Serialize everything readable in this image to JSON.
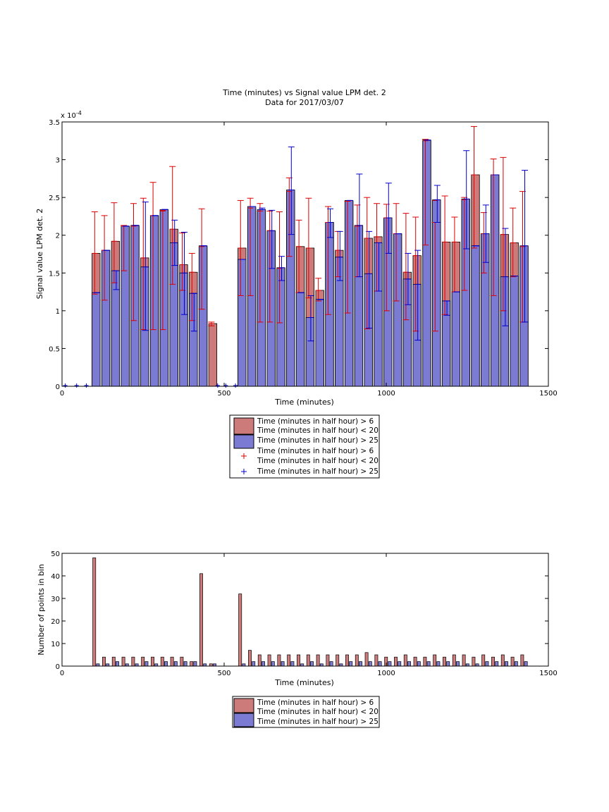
{
  "chart_data": [
    {
      "type": "bar",
      "title": "Time (minutes) vs Signal value LPM det. 2",
      "subtitle": "Data for 2017/03/07",
      "xlabel": "Time (minutes)",
      "ylabel": "Signal value LPM det. 2",
      "exponent_label": "x 10",
      "exponent_power": "-4",
      "xlim": [
        0,
        1500
      ],
      "ylim": [
        0,
        3.5
      ],
      "xticks": [
        "0",
        "500",
        "1000",
        "1500"
      ],
      "yticks": [
        "0",
        "0.5",
        "1",
        "1.5",
        "2",
        "2.5",
        "3",
        "3.5"
      ],
      "grid": false,
      "legend_position": "below",
      "legend": [
        "Time (minutes in half hour) > 6",
        "Time (minutes in half hour) < 20",
        "Time (minutes in half hour) > 25",
        "Time (minutes in half hour) > 6",
        "Time (minutes in half hour) < 20",
        "Time (minutes in half hour) > 25"
      ],
      "colors": {
        "red_bar": "#cc7a7a",
        "blue_bar": "#7b7bd4",
        "red_err": "#dd0000",
        "blue_err": "#0000cc"
      },
      "x": [
        105,
        135,
        165,
        195,
        225,
        255,
        285,
        315,
        345,
        375,
        405,
        435,
        465,
        555,
        585,
        615,
        645,
        675,
        705,
        735,
        765,
        795,
        825,
        855,
        885,
        915,
        945,
        975,
        1005,
        1035,
        1065,
        1095,
        1125,
        1155,
        1185,
        1215,
        1245,
        1275,
        1305,
        1335,
        1365,
        1395,
        1425
      ],
      "series": [
        {
          "name": "Time (minutes in half hour) > 6",
          "values": [
            1.76,
            1.8,
            1.92,
            2.12,
            2.12,
            1.7,
            2.26,
            2.32,
            2.08,
            1.61,
            1.51,
            1.85,
            0.83,
            1.83,
            2.36,
            2.32,
            2.06,
            1.56,
            2.58,
            1.85,
            1.83,
            1.27,
            2.17,
            1.8,
            2.45,
            2.12,
            1.96,
            1.98,
            2.23,
            2.02,
            1.51,
            1.73,
            3.25,
            2.46,
            1.91,
            1.91,
            2.47,
            2.8,
            2.02,
            2.8,
            2.01,
            1.9,
            1.85
          ],
          "err_low": [
            1.22,
            1.14,
            1.37,
            1.53,
            0.87,
            0.75,
            0.75,
            0.75,
            1.35,
            1.27,
            0.87,
            1.02,
            0.8,
            1.2,
            1.2,
            0.85,
            0.85,
            0.84,
            1.72,
            1.24,
            1.17,
            1.13,
            0.95,
            1.45,
            0.97,
            1.45,
            0.76,
            1.26,
            1.0,
            1.13,
            0.88,
            0.73,
            1.87,
            0.73,
            0.95,
            1.25,
            1.27,
            1.83,
            1.5,
            1.2,
            1.0,
            1.45,
            0.85
          ],
          "err_high": [
            2.31,
            2.26,
            2.43,
            2.13,
            2.42,
            2.49,
            2.7,
            2.33,
            2.91,
            2.03,
            1.76,
            2.35,
            0.85,
            2.46,
            2.49,
            2.42,
            2.32,
            2.31,
            2.76,
            2.2,
            2.49,
            1.43,
            2.38,
            2.05,
            2.45,
            2.4,
            2.5,
            2.42,
            2.41,
            2.42,
            2.29,
            2.24,
            3.27,
            2.17,
            2.52,
            2.24,
            2.5,
            3.44,
            2.3,
            3.01,
            3.03,
            2.36,
            2.58
          ]
        },
        {
          "name": "Time (minutes in half hour) > 25",
          "values": [
            1.24,
            1.8,
            1.53,
            2.12,
            2.13,
            1.58,
            2.26,
            2.34,
            1.9,
            1.5,
            1.23,
            1.86,
            0,
            1.68,
            2.38,
            2.34,
            2.06,
            1.57,
            2.6,
            1.24,
            0.91,
            1.15,
            2.17,
            1.71,
            2.46,
            2.13,
            1.49,
            1.9,
            2.23,
            2.02,
            1.42,
            1.35,
            3.26,
            2.47,
            1.13,
            1.25,
            2.48,
            1.86,
            2.02,
            2.8,
            1.45,
            1.46,
            1.86
          ],
          "err_low": [
            1.24,
            1.8,
            1.28,
            2.12,
            2.13,
            0.74,
            2.26,
            2.34,
            1.6,
            0.95,
            0.73,
            1.86,
            0,
            1.68,
            2.38,
            2.34,
            1.56,
            1.4,
            2.01,
            1.24,
            0.6,
            1.15,
            1.97,
            1.4,
            2.46,
            1.45,
            0.77,
            1.26,
            1.76,
            2.02,
            1.08,
            0.61,
            3.26,
            2.17,
            0.94,
            1.25,
            1.82,
            1.86,
            1.64,
            2.8,
            0.8,
            1.46,
            0.85
          ],
          "err_high": [
            1.24,
            1.8,
            1.53,
            2.12,
            2.13,
            2.44,
            2.26,
            2.34,
            2.2,
            2.04,
            1.23,
            1.86,
            0,
            1.68,
            2.38,
            2.36,
            2.33,
            1.72,
            3.17,
            1.24,
            1.2,
            1.15,
            2.35,
            2.05,
            2.46,
            2.81,
            2.05,
            1.9,
            2.69,
            2.02,
            1.76,
            1.8,
            3.26,
            2.66,
            1.13,
            1.25,
            3.12,
            1.86,
            2.4,
            2.8,
            2.09,
            1.46,
            2.86
          ]
        }
      ],
      "zero_markers_x": [
        10,
        45,
        75,
        480,
        505,
        535
      ]
    },
    {
      "type": "bar",
      "title": "",
      "xlabel": "Time (minutes)",
      "ylabel": "Number of points in bin",
      "xlim": [
        0,
        1500
      ],
      "ylim": [
        0,
        50
      ],
      "xticks": [
        "0",
        "500",
        "1000",
        "1500"
      ],
      "yticks": [
        "0",
        "10",
        "20",
        "30",
        "40",
        "50"
      ],
      "grid": false,
      "legend_position": "below",
      "legend": [
        "Time (minutes in half hour) > 6",
        "Time (minutes in half hour) < 20",
        "Time (minutes in half hour) > 25"
      ],
      "colors": {
        "red_bar": "#cc7a7a",
        "blue_bar": "#7b7bd4"
      },
      "x": [
        105,
        135,
        165,
        195,
        225,
        255,
        285,
        315,
        345,
        375,
        405,
        435,
        465,
        555,
        585,
        615,
        645,
        675,
        705,
        735,
        765,
        795,
        825,
        855,
        885,
        915,
        945,
        975,
        1005,
        1035,
        1065,
        1095,
        1125,
        1155,
        1185,
        1215,
        1245,
        1275,
        1305,
        1335,
        1365,
        1395,
        1425
      ],
      "series": [
        {
          "name": "Time (minutes in half hour) > 6",
          "values": [
            48,
            4,
            4,
            4,
            4,
            4,
            4,
            4,
            4,
            4,
            2,
            41,
            1,
            32,
            7,
            5,
            5,
            5,
            5,
            5,
            5,
            5,
            5,
            5,
            5,
            5,
            6,
            5,
            4,
            4,
            5,
            4,
            4,
            5,
            4,
            5,
            5,
            4,
            5,
            4,
            5,
            4,
            5
          ]
        },
        {
          "name": "Time (minutes in half hour) > 25",
          "values": [
            1,
            1,
            2,
            1,
            1,
            2,
            1,
            2,
            2,
            2,
            2,
            1,
            1,
            1,
            2,
            2,
            2,
            2,
            2,
            1,
            2,
            1,
            2,
            1,
            2,
            2,
            2,
            2,
            2,
            2,
            2,
            2,
            2,
            2,
            2,
            2,
            1,
            1,
            2,
            2,
            2,
            2,
            2
          ]
        }
      ]
    }
  ]
}
